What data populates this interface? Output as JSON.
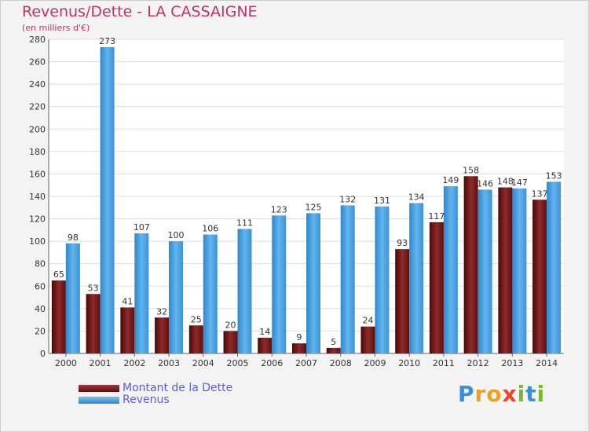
{
  "chart_data": {
    "type": "bar",
    "title": "Revenus/Dette - LA CASSAIGNE",
    "subtitle": "(en milliers d'€)",
    "categories": [
      "2000",
      "2001",
      "2002",
      "2003",
      "2004",
      "2005",
      "2006",
      "2007",
      "2008",
      "2009",
      "2010",
      "2011",
      "2012",
      "2013",
      "2014"
    ],
    "series": [
      {
        "name": "Montant de la Dette",
        "color": "#7a1b1b",
        "values": [
          65,
          53,
          41,
          32,
          25,
          20,
          14,
          9,
          5,
          24,
          93,
          117,
          158,
          148,
          137
        ]
      },
      {
        "name": "Revenus",
        "color": "#4aa3e6",
        "values": [
          98,
          273,
          107,
          100,
          106,
          111,
          123,
          125,
          132,
          131,
          134,
          149,
          146,
          147,
          153
        ]
      }
    ],
    "ylim": [
      0,
      280
    ],
    "yticks": [
      0,
      20,
      40,
      60,
      80,
      100,
      120,
      140,
      160,
      180,
      200,
      220,
      240,
      260,
      280
    ],
    "grid": true,
    "legend": "bottom-left"
  },
  "logo": {
    "letters": [
      {
        "ch": "P",
        "color": "#3a8fd8"
      },
      {
        "ch": "r",
        "color": "#f0a020"
      },
      {
        "ch": "o",
        "color": "#f0a020"
      },
      {
        "ch": "x",
        "color": "#e8452e"
      },
      {
        "ch": "i",
        "color": "#7ab82e"
      },
      {
        "ch": "t",
        "color": "#3a8fd8"
      },
      {
        "ch": "i",
        "color": "#7ab82e"
      }
    ]
  }
}
